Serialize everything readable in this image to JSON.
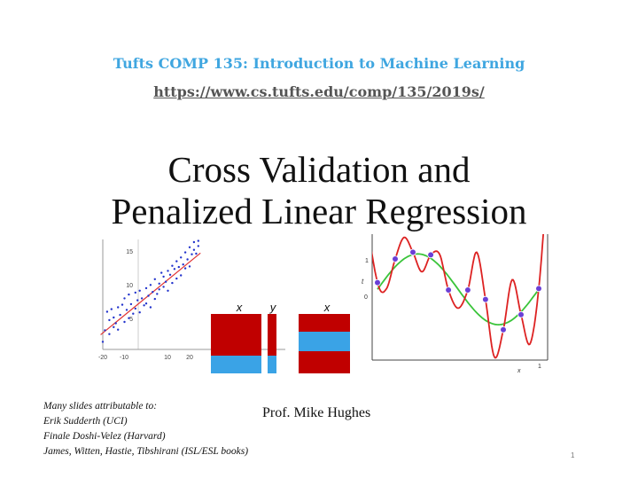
{
  "header": {
    "course_title": "Tufts COMP 135: Introduction to Machine Learning",
    "course_url": "https://www.cs.tufts.edu/comp/135/2019s/"
  },
  "title": {
    "line1": "Cross Validation and",
    "line2": "Penalized Linear Regression"
  },
  "scatter_figure": {
    "y_ticks": [
      "15",
      "10",
      "5"
    ],
    "x_ticks": [
      "-20",
      "-10",
      "10",
      "20"
    ],
    "colors": {
      "points": "#2233cc",
      "fit_line": "#e03333"
    },
    "points": [
      [
        -20,
        1.2
      ],
      [
        -19,
        3.0
      ],
      [
        -18,
        5.9
      ],
      [
        -17,
        2.4
      ],
      [
        -17,
        4.6
      ],
      [
        -16,
        6.3
      ],
      [
        -15,
        3.5
      ],
      [
        -15,
        5.0
      ],
      [
        -14,
        4.1
      ],
      [
        -13,
        6.6
      ],
      [
        -13,
        3.1
      ],
      [
        -12,
        5.4
      ],
      [
        -11,
        7.0
      ],
      [
        -10,
        4.3
      ],
      [
        -10,
        8.0
      ],
      [
        -9,
        6.2
      ],
      [
        -8,
        4.9
      ],
      [
        -8,
        8.6
      ],
      [
        -7,
        7.1
      ],
      [
        -6,
        5.6
      ],
      [
        -5,
        8.9
      ],
      [
        -5,
        6.4
      ],
      [
        -4,
        7.7
      ],
      [
        -3,
        9.2
      ],
      [
        -3,
        5.8
      ],
      [
        -2,
        8.0
      ],
      [
        -1,
        6.9
      ],
      [
        0,
        9.6
      ],
      [
        0,
        7.2
      ],
      [
        1,
        8.4
      ],
      [
        2,
        10.1
      ],
      [
        2,
        6.6
      ],
      [
        3,
        9.0
      ],
      [
        4,
        7.9
      ],
      [
        4,
        11.0
      ],
      [
        5,
        8.7
      ],
      [
        6,
        10.3
      ],
      [
        6,
        9.4
      ],
      [
        7,
        12.0
      ],
      [
        8,
        9.8
      ],
      [
        8,
        11.4
      ],
      [
        9,
        10.6
      ],
      [
        10,
        12.3
      ],
      [
        10,
        9.2
      ],
      [
        11,
        11.7
      ],
      [
        12,
        13.1
      ],
      [
        12,
        10.4
      ],
      [
        13,
        12.6
      ],
      [
        14,
        11.1
      ],
      [
        14,
        13.8
      ],
      [
        15,
        12.9
      ],
      [
        16,
        11.6
      ],
      [
        16,
        14.4
      ],
      [
        17,
        13.3
      ],
      [
        18,
        15.2
      ],
      [
        18,
        12.7
      ],
      [
        19,
        14.1
      ],
      [
        20,
        16.0
      ],
      [
        20,
        13.0
      ],
      [
        21,
        14.9
      ],
      [
        22,
        16.8
      ],
      [
        22,
        15.6
      ],
      [
        23,
        15.0
      ],
      [
        24,
        17.0
      ],
      [
        24,
        16.2
      ]
    ],
    "fit_line": {
      "x_from": -21,
      "y_from": 2.3,
      "x_to": 25,
      "y_to": 15.1
    }
  },
  "matrix_figure": {
    "labels": {
      "x": "x",
      "y": "y"
    },
    "colors": {
      "train": "#c00000",
      "validation": "#3aa3e6"
    }
  },
  "poly_figure": {
    "y_labels": {
      "one": "1",
      "t": "t",
      "zero": "0"
    },
    "x_labels": {
      "x": "x",
      "one": "1"
    },
    "colors": {
      "true_curve": "#3ac43a",
      "fit_curve": "#dd2222",
      "points": "#6a3fd6"
    },
    "sample_points": [
      [
        0.0,
        0.3
      ],
      [
        0.11,
        1.0
      ],
      [
        0.22,
        1.2
      ],
      [
        0.33,
        1.12
      ],
      [
        0.44,
        0.08
      ],
      [
        0.56,
        0.08
      ],
      [
        0.67,
        -0.2
      ],
      [
        0.78,
        -1.1
      ],
      [
        0.89,
        -0.65
      ],
      [
        1.0,
        0.12
      ]
    ]
  },
  "credits": {
    "line1": "Many slides attributable to:",
    "line2": "Erik Sudderth (UCI)",
    "line3": "Finale Doshi-Velez (Harvard)",
    "line4": "James, Witten, Hastie, Tibshirani (ISL/ESL books)"
  },
  "presenter": "Prof. Mike Hughes",
  "page_number": "1"
}
